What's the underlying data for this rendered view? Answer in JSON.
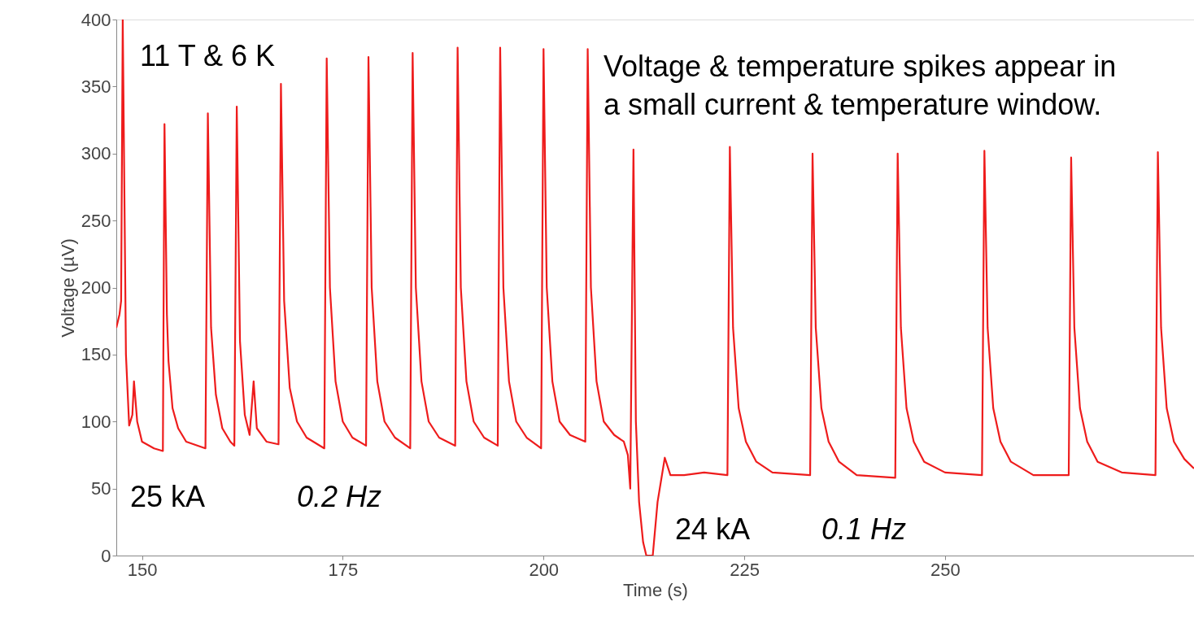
{
  "chart_data": {
    "type": "line",
    "xlabel": "Time (s)",
    "ylabel": "Voltage (µV)",
    "xlim": [
      146.8,
      281
    ],
    "ylim": [
      0,
      400
    ],
    "xticks": [
      150,
      175,
      200,
      225,
      250
    ],
    "yticks": [
      0,
      50,
      100,
      150,
      200,
      250,
      300,
      350,
      400
    ],
    "grid": false,
    "annotations": [
      "11 T & 6 K",
      "Voltage & temperature spikes appear in\na small current & temperature window.",
      "25 kA",
      "0.2 Hz",
      "24 kA",
      "0.1 Hz"
    ],
    "series": [
      {
        "color": "#ee1c1c",
        "x": [
          146.8,
          147.2,
          147.4,
          147.6,
          148.0,
          148.4,
          148.8,
          149.0,
          149.4,
          150.0,
          151.5,
          152.6,
          152.8,
          153.1,
          153.3,
          153.8,
          154.5,
          155.5,
          157.9,
          158.2,
          158.6,
          159.2,
          160.0,
          161.0,
          161.5,
          161.8,
          162.2,
          162.8,
          163.4,
          163.9,
          164.3,
          165.5,
          167.0,
          167.3,
          167.7,
          168.4,
          169.3,
          170.5,
          172.7,
          173.0,
          173.4,
          174.1,
          175.0,
          176.2,
          177.9,
          178.2,
          178.6,
          179.3,
          180.2,
          181.5,
          183.4,
          183.7,
          184.1,
          184.8,
          185.7,
          187.0,
          189.0,
          189.3,
          189.7,
          190.4,
          191.3,
          192.6,
          194.3,
          194.6,
          195.0,
          195.7,
          196.6,
          197.9,
          199.7,
          200.0,
          200.4,
          201.1,
          202.0,
          203.3,
          205.2,
          205.5,
          205.9,
          206.6,
          207.5,
          208.8,
          210.0,
          210.5,
          210.8,
          211.2,
          211.5,
          211.9,
          212.4,
          212.8,
          213.6,
          214.2,
          215.1,
          215.8,
          217.5,
          220.0,
          222.9,
          223.2,
          223.6,
          224.3,
          225.2,
          226.5,
          228.5,
          233.2,
          233.5,
          233.9,
          234.6,
          235.5,
          236.8,
          239.0,
          243.8,
          244.1,
          244.5,
          245.2,
          246.1,
          247.4,
          250.0,
          254.6,
          254.9,
          255.3,
          256.0,
          256.9,
          258.2,
          261.0,
          265.4,
          265.7,
          266.1,
          266.8,
          267.7,
          269.0,
          272.0,
          276.2,
          276.5,
          276.9,
          277.6,
          278.5,
          279.8,
          281.0
        ],
        "values": [
          170,
          180,
          190,
          400,
          150,
          97,
          105,
          130,
          100,
          85,
          80,
          78,
          322,
          180,
          145,
          110,
          95,
          85,
          80,
          330,
          170,
          120,
          95,
          85,
          82,
          335,
          160,
          105,
          90,
          130,
          95,
          85,
          83,
          352,
          190,
          125,
          100,
          88,
          80,
          371,
          200,
          130,
          100,
          88,
          82,
          372,
          200,
          130,
          100,
          88,
          80,
          375,
          200,
          130,
          100,
          88,
          82,
          379,
          200,
          130,
          100,
          88,
          82,
          379,
          200,
          130,
          100,
          88,
          80,
          378,
          200,
          130,
          100,
          90,
          85,
          378,
          200,
          130,
          100,
          90,
          85,
          75,
          50,
          303,
          100,
          40,
          10,
          0,
          0,
          40,
          73,
          60,
          60,
          62,
          60,
          305,
          170,
          110,
          85,
          70,
          62,
          60,
          300,
          170,
          110,
          85,
          70,
          60,
          58,
          300,
          170,
          110,
          85,
          70,
          62,
          60,
          302,
          170,
          110,
          85,
          70,
          60,
          60,
          297,
          170,
          110,
          85,
          70,
          62,
          60,
          301,
          170,
          110,
          85,
          72,
          65
        ]
      }
    ]
  }
}
